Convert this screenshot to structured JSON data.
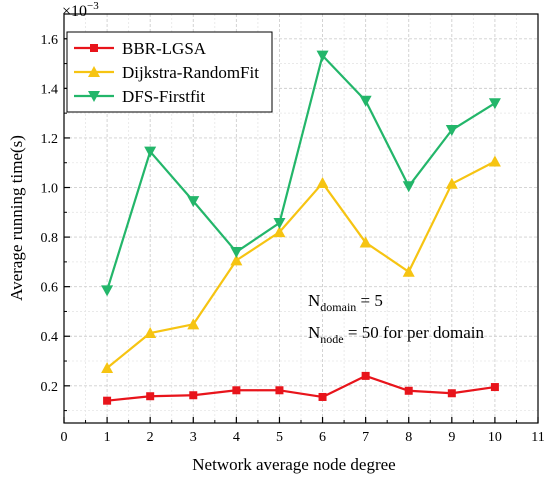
{
  "chart_data": {
    "type": "line",
    "title": "",
    "xlabel": "Network average node degree",
    "ylabel": "Average running time(s)",
    "y_multiplier": "×10",
    "y_multiplier_exp": "−3",
    "xlim": [
      0,
      11
    ],
    "ylim": [
      0.05,
      1.7
    ],
    "x_ticks": [
      0,
      1,
      2,
      3,
      4,
      5,
      6,
      7,
      8,
      9,
      10,
      11
    ],
    "y_ticks": [
      0.2,
      0.4,
      0.6,
      0.8,
      1.0,
      1.2,
      1.4,
      1.6
    ],
    "grid": true,
    "legend_position": "top-left",
    "x": [
      1,
      2,
      3,
      4,
      5,
      6,
      7,
      8,
      9,
      10
    ],
    "series": [
      {
        "name": "BBR-LGSA",
        "color": "#e8141b",
        "marker": "square",
        "values": [
          0.14,
          0.158,
          0.162,
          0.182,
          0.182,
          0.155,
          0.24,
          0.18,
          0.17,
          0.195
        ]
      },
      {
        "name": "Dijkstra-RandomFit",
        "color": "#f6c412",
        "marker": "triangle-up",
        "values": [
          0.272,
          0.413,
          0.448,
          0.706,
          0.82,
          1.018,
          0.778,
          0.66,
          1.015,
          1.105
        ]
      },
      {
        "name": "DFS-Firstfit",
        "color": "#23b66a",
        "marker": "triangle-down",
        "values": [
          0.585,
          1.145,
          0.945,
          0.74,
          0.857,
          1.532,
          1.35,
          1.005,
          1.232,
          1.34
        ]
      }
    ],
    "annotations": [
      {
        "base": "N",
        "sub": "domain",
        "rest": " = 5"
      },
      {
        "base": "N",
        "sub": "node",
        "rest": " = 50 for per domain"
      }
    ]
  }
}
